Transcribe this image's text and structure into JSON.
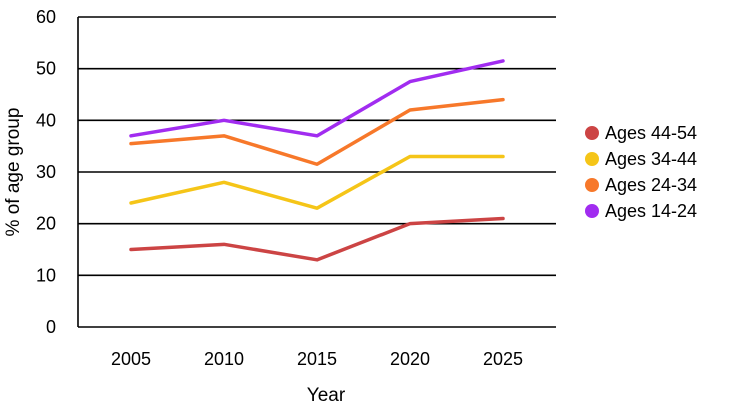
{
  "chart_data": {
    "type": "line",
    "x": [
      2005,
      2010,
      2015,
      2020,
      2025
    ],
    "x_tick_labels": [
      "2005",
      "2010",
      "2015",
      "2020",
      "2025"
    ],
    "y_tick_labels": [
      "0",
      "10",
      "20",
      "30",
      "40",
      "50",
      "60"
    ],
    "xlabel": "Year",
    "ylabel": "% of age group",
    "ylim": [
      0,
      60
    ],
    "grid": "horizontal",
    "legend_position": "right",
    "series": [
      {
        "name": "Ages 44-54",
        "color": "#cc4444",
        "values": [
          15,
          16,
          13,
          20,
          21
        ]
      },
      {
        "name": "Ages 34-44",
        "color": "#f5c518",
        "values": [
          24,
          28,
          23,
          33,
          33
        ]
      },
      {
        "name": "Ages 24-34",
        "color": "#f7782a",
        "values": [
          35.5,
          37,
          31.5,
          42,
          44
        ]
      },
      {
        "name": "Ages 14-24",
        "color": "#a12cf0",
        "values": [
          37,
          40,
          37,
          47.5,
          51.5
        ]
      }
    ]
  }
}
